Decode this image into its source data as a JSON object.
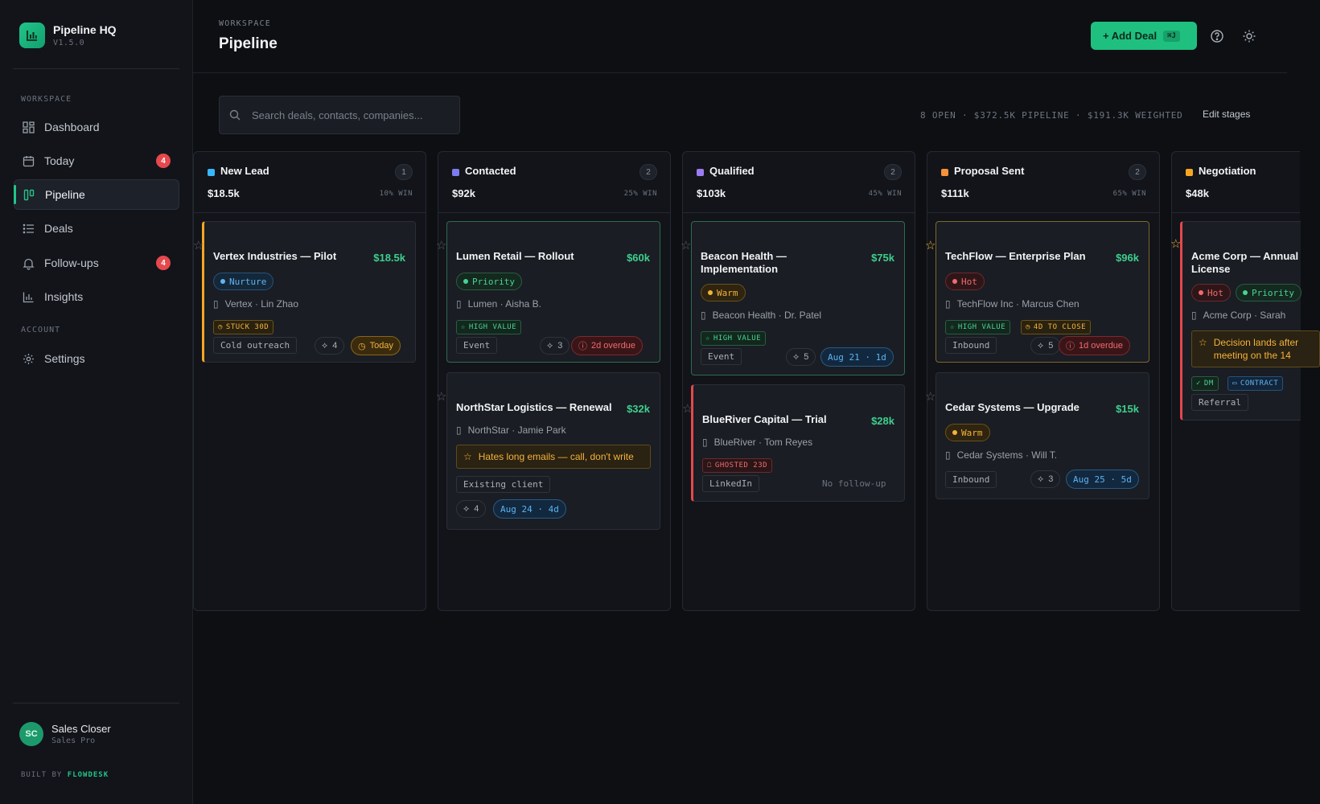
{
  "app": {
    "name": "Pipeline HQ",
    "version": "V1.5.0"
  },
  "sidebar": {
    "section_workspace": "WORKSPACE",
    "section_account": "ACCOUNT",
    "items": [
      {
        "label": "Dashboard",
        "icon": "grid-icon"
      },
      {
        "label": "Today",
        "icon": "calendar-icon",
        "badge": "4"
      },
      {
        "label": "Pipeline",
        "icon": "kanban-icon",
        "active": true
      },
      {
        "label": "Deals",
        "icon": "list-icon"
      },
      {
        "label": "Follow-ups",
        "icon": "bell-icon",
        "badge": "4"
      },
      {
        "label": "Insights",
        "icon": "bar-chart-icon"
      }
    ],
    "settings": {
      "label": "Settings",
      "icon": "gear-icon"
    },
    "user": {
      "initials": "SC",
      "name": "Sales Closer",
      "role": "Sales Pro"
    },
    "built_by_prefix": "BUILT BY",
    "built_by_brand": "FLOWDESK"
  },
  "header": {
    "crumb": "WORKSPACE",
    "title": "Pipeline",
    "add_deal": "+ Add Deal",
    "shortcut": "⌘J"
  },
  "toolbar": {
    "search_placeholder": "Search deals, contacts, companies...",
    "stats": "8 OPEN · $372.5K PIPELINE · $191.3K WEIGHTED",
    "edit_stages": "Edit stages"
  },
  "colors": {
    "accent": "#1fc07f",
    "new_lead": "#38b6ff",
    "contacted": "#7c7cf0",
    "qualified": "#9b7cf0",
    "proposal": "#f5923a",
    "negotiation": "#f5a623"
  },
  "columns": [
    {
      "name": "New Lead",
      "count": "1",
      "value": "$18.5k",
      "win": "10% WIN"
    },
    {
      "name": "Contacted",
      "count": "2",
      "value": "$92k",
      "win": "25% WIN"
    },
    {
      "name": "Qualified",
      "count": "2",
      "value": "$103k",
      "win": "45% WIN"
    },
    {
      "name": "Proposal Sent",
      "count": "2",
      "value": "$111k",
      "win": "65% WIN"
    },
    {
      "name": "Negotiation",
      "count": "",
      "value": "$48k",
      "win": ""
    }
  ],
  "cards": {
    "vertex": {
      "title": "Vertex Industries — Pilot",
      "value": "$18.5k",
      "status": "Nurture",
      "company": "Vertex · Lin Zhao",
      "tag1": "STUCK 30D",
      "source": "Cold outreach",
      "acts": "4",
      "due": "Today"
    },
    "lumen": {
      "title": "Lumen Retail — Rollout",
      "value": "$60k",
      "status": "Priority",
      "company": "Lumen · Aisha B.",
      "tag1": "HIGH VALUE",
      "source": "Event",
      "acts": "3",
      "due": "2d overdue"
    },
    "northstar": {
      "title": "NorthStar Logistics — Renewal",
      "value": "$32k",
      "company": "NorthStar · Jamie Park",
      "note": "Hates long emails — call, don't write",
      "source": "Existing client",
      "acts": "4",
      "due": "Aug 24 · 4d"
    },
    "beacon": {
      "title": "Beacon Health — Implementation",
      "value": "$75k",
      "status": "Warm",
      "company": "Beacon Health · Dr. Patel",
      "tag1": "HIGH VALUE",
      "source": "Event",
      "acts": "5",
      "due": "Aug 21 · 1d"
    },
    "blueriver": {
      "title": "BlueRiver Capital — Trial",
      "value": "$28k",
      "company": "BlueRiver · Tom Reyes",
      "tag1": "GHOSTED 23D",
      "source": "LinkedIn",
      "nofollow": "No follow-up"
    },
    "techflow": {
      "title": "TechFlow — Enterprise Plan",
      "value": "$96k",
      "status": "Hot",
      "company": "TechFlow Inc · Marcus Chen",
      "tag1": "HIGH VALUE",
      "tag2": "4D TO CLOSE",
      "source": "Inbound",
      "acts": "5",
      "due": "1d overdue"
    },
    "cedar": {
      "title": "Cedar Systems — Upgrade",
      "value": "$15k",
      "status": "Warm",
      "company": "Cedar Systems · Will T.",
      "source": "Inbound",
      "acts": "3",
      "due": "Aug 25 · 5d"
    },
    "acme": {
      "title": "Acme Corp — Annual License",
      "status": "Hot",
      "status2": "Priority",
      "company": "Acme Corp · Sarah",
      "note": "Decision lands after meeting on the 14",
      "tag1": "DM",
      "tag2": "CONTRACT",
      "source": "Referral"
    }
  }
}
